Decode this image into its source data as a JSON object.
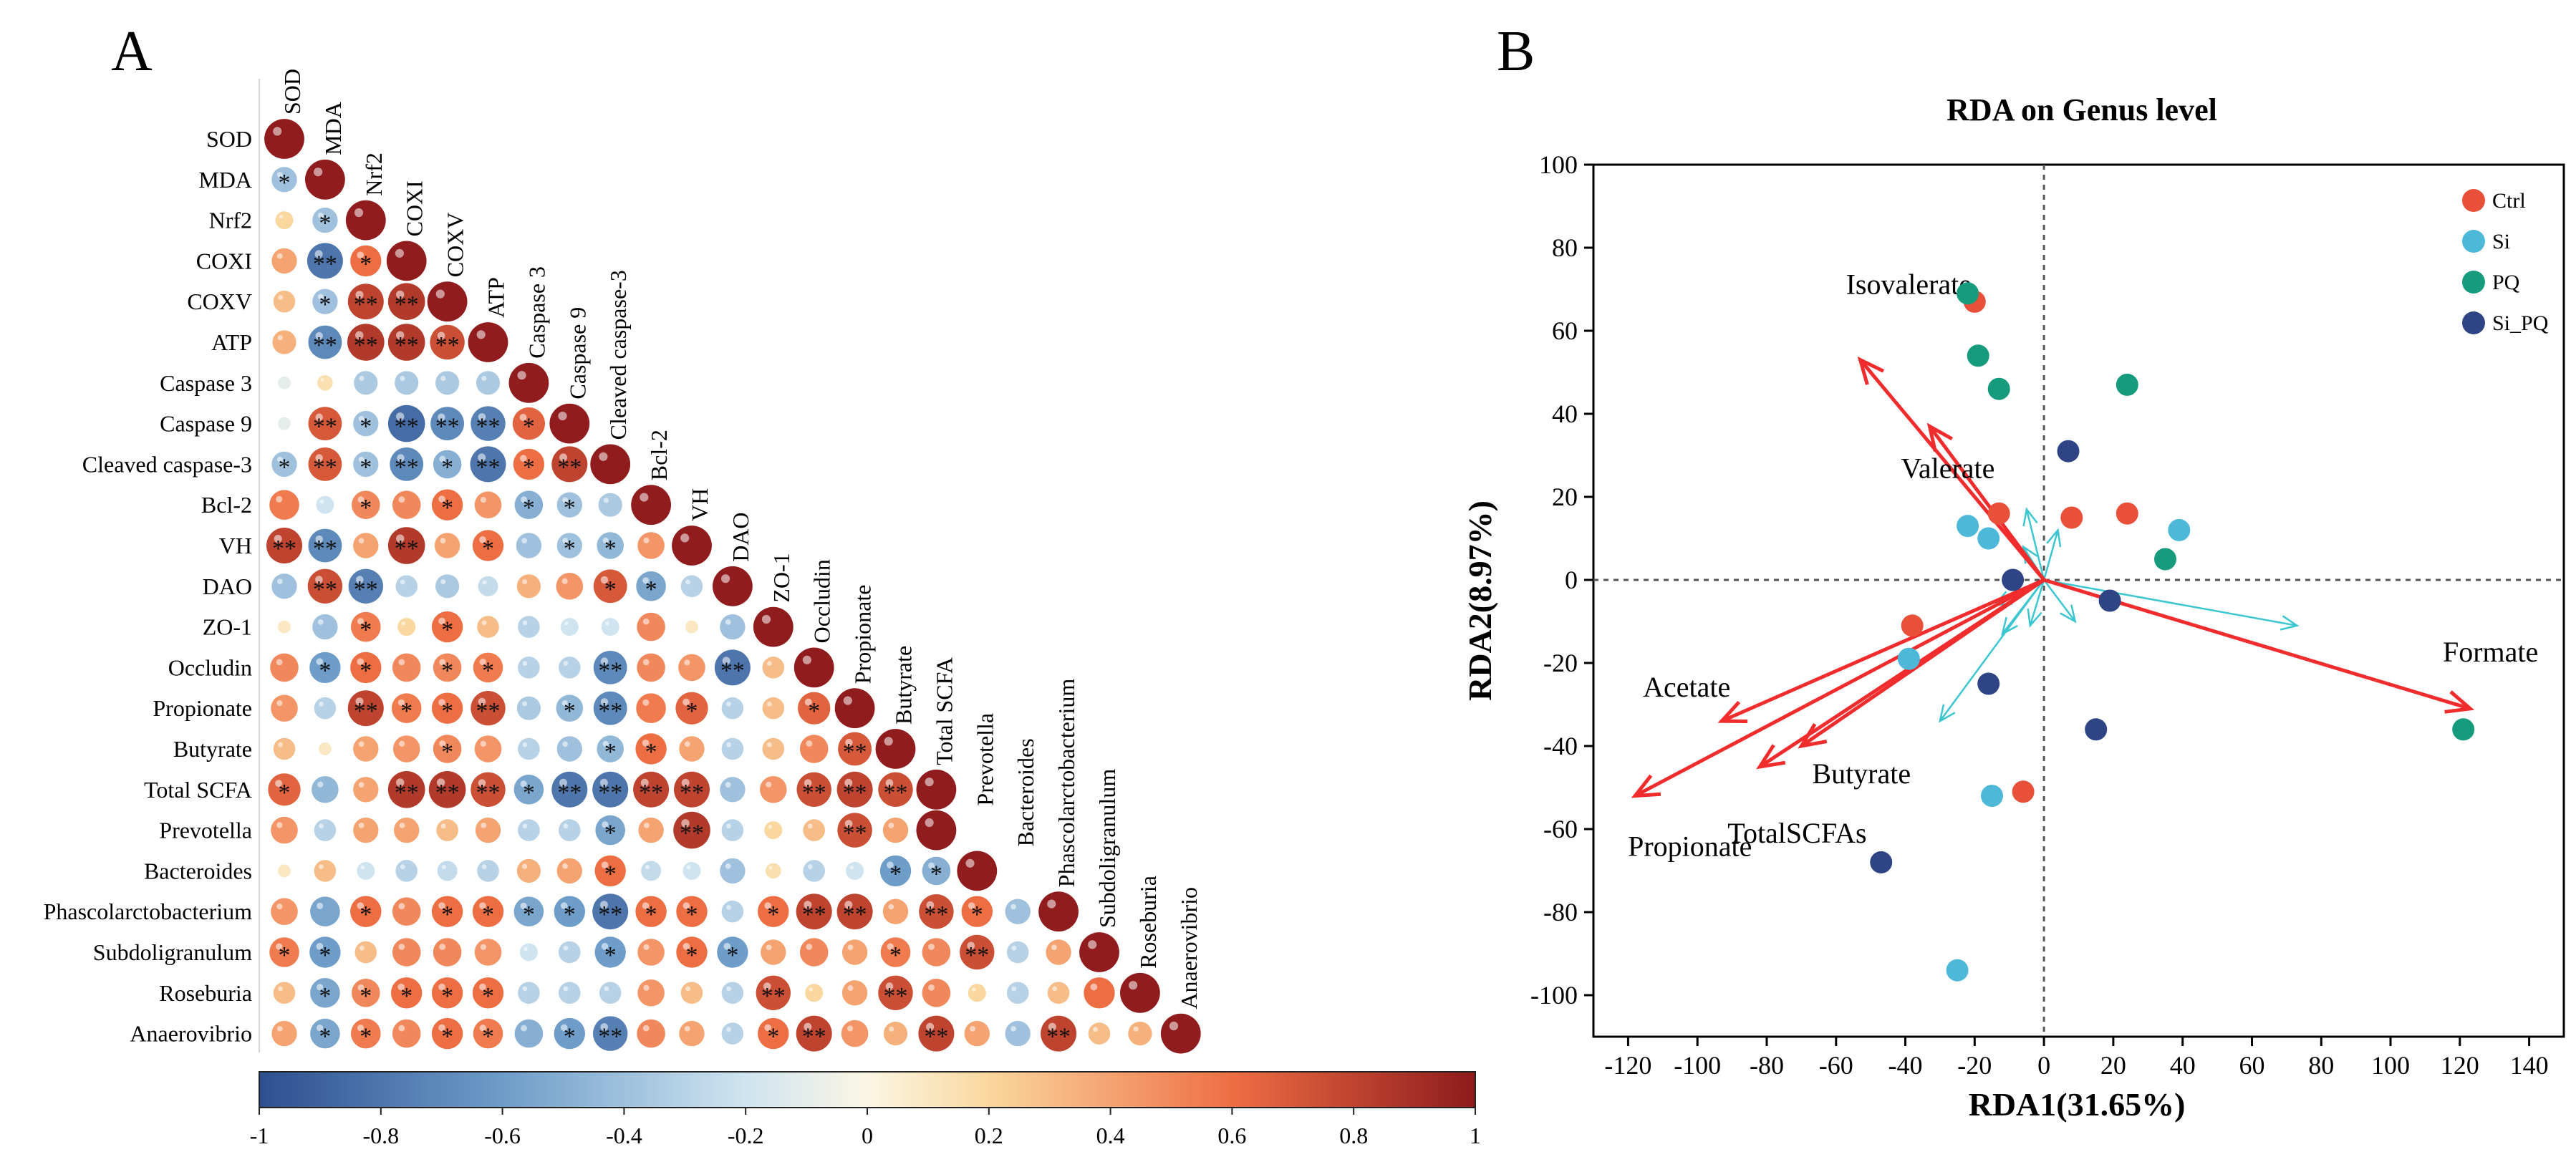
{
  "panels": {
    "A": {
      "label": "A",
      "variables": [
        "SOD",
        "MDA",
        "Nrf2",
        "COXI",
        "COXV",
        "ATP",
        "Caspase 3",
        "Caspase 9",
        "Cleaved caspase-3",
        "Bcl-2",
        "VH",
        "DAO",
        "ZO-1",
        "Occludin",
        "Propionate",
        "Butyrate",
        "Total SCFA",
        "Prevotella",
        "Bacteroides",
        "Phascolarctobacterium",
        "Subdoligranulum",
        "Roseburia",
        "Anaerovibrio"
      ],
      "colorbar_ticks": [
        "-1",
        "-0.8",
        "-0.6",
        "-0.4",
        "-0.2",
        "0",
        "0.2",
        "0.4",
        "0.6",
        "0.8",
        "1"
      ]
    },
    "B": {
      "label": "B",
      "title": "RDA on Genus level",
      "xlabel": "RDA1(31.65%)",
      "ylabel": "RDA2(8.97%)"
    }
  },
  "chart_data": [
    {
      "type": "heatmap",
      "subtype": "lower-triangular correlation matrix (circle size = |r|, color = r; * p<0.05, ** p<0.01)",
      "color_range": [
        -1,
        1
      ],
      "rows": [
        "0.99",
        "-0.4* 0.99",
        "0.2 -0.4* 0.99",
        "0.4 -0.8** 0.6* 0.99",
        "0.3 -0.4* 0.8** 0.85** 0.99",
        "0.35 -0.7** 0.85** 0.85** 0.75** 0.99",
        "-0.1 0.15 -0.35 -0.35 -0.35 -0.35 0.99",
        "-0.1 0.7** -0.4* -0.85** -0.7** -0.75** 0.65* 0.99",
        "-0.4* 0.7** -0.4* -0.7** -0.5* -0.8** 0.6* 0.8** 0.99",
        "0.55 -0.2 0.5* 0.5 0.6* 0.45 -0.5* -0.4* -0.35 0.99",
        "0.8** -0.7** 0.4 0.85** 0.4 0.6* -0.4 -0.4* -0.45* 0.45 0.99",
        "-0.4 0.75** -0.75** -0.3 -0.35 -0.25 0.35 0.45 0.7* -0.55* -0.3 0.99",
        "0.1 -0.4 0.55* 0.2 0.6* 0.3 -0.3 -0.2 -0.2 0.5 0.1 -0.4 0.99",
        "0.5 -0.6* 0.6* 0.5 0.5* 0.55* -0.3 -0.3 -0.7** 0.5 0.45 -0.8** 0.3 0.99",
        "0.45 -0.3 0.8** 0.55* 0.6* 0.75** -0.35 -0.45* -0.7** 0.55 0.65* -0.3 0.3 0.65* 0.99",
        "0.3 0.1 0.4 0.45 0.5* 0.45 -0.3 -0.4 -0.45* 0.6* 0.4 -0.3 0.3 0.5 0.7** 0.99",
        "0.65* -0.45 0.4 0.85** 0.85** 0.75** -0.55* -0.8** -0.8** 0.8** 0.8** -0.4 0.45 0.75** 0.8** 0.75** 0.99",
        "0.45 -0.3 0.4 0.4 0.3 0.4 -0.3 -0.3 -0.55* 0.4 0.85** -0.3 0.2 0.3 0.75** 0.4 0.99",
        "0.1 0.3 -0.2 -0.3 -0.25 -0.3 0.35 0.4 0.6* -0.25 -0.2 -0.4 0.15 -0.3 -0.2 -0.6* -0.5* 0.99",
        "0.45 -0.55 0.6* 0.5 0.6* 0.6* -0.55* -0.6* -0.8** 0.6* 0.6* -0.3 0.6* 0.8** 0.8** 0.4 0.75** 0.6* -0.4 0.99",
        "0.55* -0.6* 0.3 0.5 0.5 0.45 -0.2 -0.3 -0.6* 0.45 0.6* -0.6* 0.4 0.5 0.4 0.55* 0.5 0.75** -0.3 0.4 0.99",
        "0.3 -0.55* 0.5* 0.6* 0.6* 0.6* -0.3 -0.3 -0.3 0.45 0.3 -0.3 0.75** 0.2 0.4 0.75** 0.5 0.2 -0.3 0.3 0.6 0.99",
        "0.4 -0.55* 0.55* 0.5 0.6* 0.55* -0.5 -0.6* -0.75** 0.5 0.4 -0.3 0.6* 0.8** 0.45 0.35 0.8** 0.4 -0.4 0.8** 0.3 0.35 0.99"
      ]
    },
    {
      "type": "scatter",
      "subtype": "RDA biplot",
      "title": "RDA on Genus level",
      "xlabel": "RDA1(31.65%)",
      "ylabel": "RDA2(8.97%)",
      "xlim": [
        -130,
        150
      ],
      "ylim": [
        -110,
        100
      ],
      "xticks": [
        -120,
        -100,
        -80,
        -60,
        -40,
        -20,
        0,
        20,
        40,
        60,
        80,
        100,
        120,
        140
      ],
      "yticks": [
        -100,
        -80,
        -60,
        -40,
        -20,
        0,
        20,
        40,
        60,
        80,
        100
      ],
      "legend_position": "top-right",
      "groups": [
        {
          "name": "Ctrl",
          "color": "#E8503A",
          "points": [
            [
              -20,
              67
            ],
            [
              -13,
              16
            ],
            [
              8,
              15
            ],
            [
              24,
              16
            ],
            [
              -38,
              -11
            ],
            [
              -6,
              -51
            ]
          ]
        },
        {
          "name": "Si",
          "color": "#4DB8D8",
          "points": [
            [
              -22,
              13
            ],
            [
              -16,
              10
            ],
            [
              39,
              12
            ],
            [
              -39,
              -19
            ],
            [
              -15,
              -52
            ],
            [
              -25,
              -94
            ]
          ]
        },
        {
          "name": "PQ",
          "color": "#169B7C",
          "points": [
            [
              -22,
              69
            ],
            [
              -19,
              54
            ],
            [
              -13,
              46
            ],
            [
              24,
              47
            ],
            [
              35,
              5
            ],
            [
              121,
              -36
            ]
          ]
        },
        {
          "name": "Si_PQ",
          "color": "#2E4484",
          "points": [
            [
              7,
              31
            ],
            [
              -9,
              0
            ],
            [
              19,
              -5
            ],
            [
              -16,
              -25
            ],
            [
              15,
              -36
            ],
            [
              -47,
              -68
            ]
          ]
        }
      ],
      "env_arrows": [
        {
          "name": "Isovalerate",
          "x": -53,
          "y": 53
        },
        {
          "name": "Valerate",
          "x": -33,
          "y": 37
        },
        {
          "name": "Formate",
          "x": 123,
          "y": -31
        },
        {
          "name": "Acetate",
          "x": -93,
          "y": -34
        },
        {
          "name": "Butyrate",
          "x": -70,
          "y": -40
        },
        {
          "name": "TotalSCFAs",
          "x": -82,
          "y": -45
        },
        {
          "name": "Propionate",
          "x": -118,
          "y": -52
        }
      ],
      "species_arrows": [
        [
          73,
          -11
        ],
        [
          -5,
          17
        ],
        [
          -30,
          -34
        ],
        [
          -12,
          -13
        ],
        [
          4,
          12
        ],
        [
          -6,
          8
        ],
        [
          9,
          -10
        ],
        [
          -14,
          -6
        ],
        [
          -4,
          -11
        ]
      ]
    }
  ]
}
